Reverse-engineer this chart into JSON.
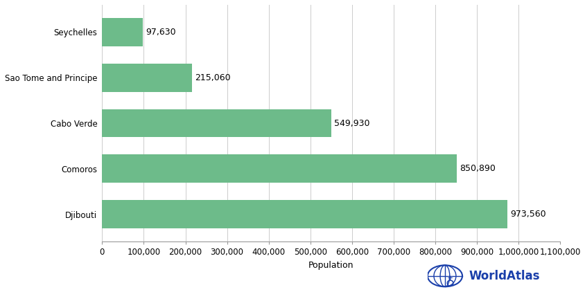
{
  "countries": [
    "Djibouti",
    "Comoros",
    "Cabo Verde",
    "Sao Tome and Principe",
    "Seychelles"
  ],
  "populations": [
    973560,
    850890,
    549930,
    215060,
    97630
  ],
  "bar_color": "#6dbb8a",
  "label_values": [
    "973,560",
    "850,890",
    "549,930",
    "215,060",
    "97,630"
  ],
  "xlabel": "Population",
  "xlim": [
    0,
    1100000
  ],
  "xticks": [
    0,
    100000,
    200000,
    300000,
    400000,
    500000,
    600000,
    700000,
    800000,
    900000,
    1000000,
    1100000
  ],
  "xtick_labels": [
    "0",
    "100,000",
    "200,000",
    "300,000",
    "400,000",
    "500,000",
    "600,000",
    "700,000",
    "800,000",
    "900,000",
    "1,000,000",
    "1,100,000"
  ],
  "watermark_color": "#1a3faa",
  "background_color": "#ffffff",
  "bar_height": 0.62,
  "label_fontsize": 9,
  "tick_fontsize": 8.5,
  "xlabel_fontsize": 9
}
